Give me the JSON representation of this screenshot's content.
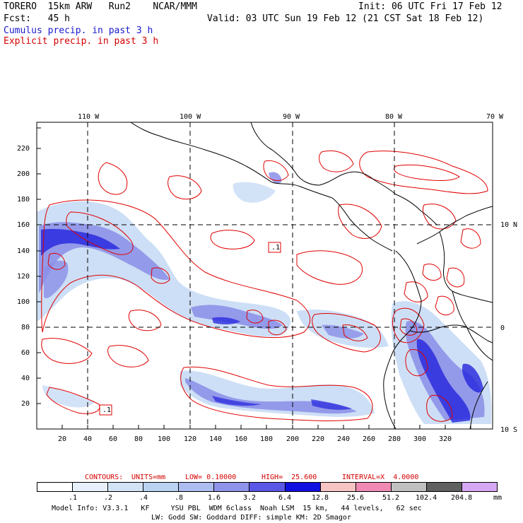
{
  "header": {
    "model_line": "TORERO  15km ARW   Run2    NCAR/MMM",
    "init_line": "Init: 06 UTC Fri 17 Feb 12",
    "fcst_line": "Fcst:   45 h",
    "valid_line": "Valid: 03 UTC Sun 19 Feb 12 (21 CST Sat 18 Feb 12)",
    "cumulus_label": "Cumulus precip. in past 3 h",
    "explicit_label": "Explicit precip. in past 3 h"
  },
  "map": {
    "lon_labels": [
      "110 W",
      "100 W",
      "90 W",
      "80 W",
      "70 W"
    ],
    "lat_labels": [
      "10 N",
      "0",
      "10 S"
    ],
    "x_ticks": [
      "20",
      "40",
      "60",
      "80",
      "100",
      "120",
      "140",
      "160",
      "180",
      "200",
      "220",
      "240",
      "260",
      "280",
      "300",
      "320"
    ],
    "y_ticks": [
      "20",
      "40",
      "60",
      "80",
      "100",
      "120",
      "140",
      "160",
      "180",
      "200",
      "220"
    ],
    "box_labels": [
      ".1",
      ".1"
    ],
    "colors": {
      "contour": "#e00000",
      "cumulus_light": "#c8dcf5",
      "cumulus_mid": "#8a8ee8",
      "cumulus_dark": "#2020e0",
      "coast": "#000000"
    }
  },
  "footer": {
    "contours_line": {
      "label": "CONTOURS:",
      "units": "UNITS=mm",
      "low": "LOW= 0.10000",
      "high": "HIGH=  25.600",
      "interval": "INTERVAL=X  4.0000"
    },
    "colorbar": {
      "values": [
        ".1",
        ".2",
        ".4",
        ".8",
        "1.6",
        "3.2",
        "6.4",
        "12.8",
        "25.6",
        "51.2",
        "102.4",
        "204.8"
      ],
      "unit": "mm",
      "colors": [
        "#ffffff",
        "#e8f0fb",
        "#d2e3f6",
        "#b9d3f1",
        "#aebdf0",
        "#8f93ea",
        "#5a58e6",
        "#1010e0",
        "#f7c4c4",
        "#f08ab4",
        "#c0c0c0",
        "#606060",
        "#d6a8f4"
      ]
    },
    "model_info_1": "Model Info: V3.3.1   KF     YSU PBL  WDM 6class  Noah LSM  15 km,   44 levels,   62 sec",
    "model_info_2": "LW: Godd SW: Goddard DIFF: simple KM: 2D Smagor"
  }
}
